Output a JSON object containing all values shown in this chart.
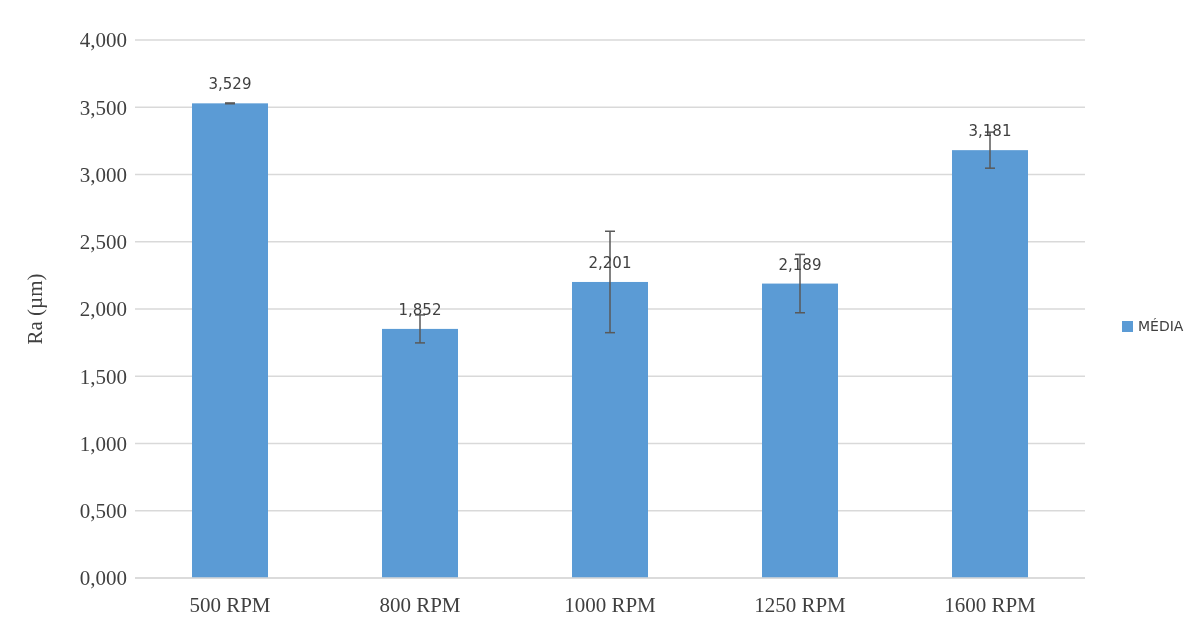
{
  "chart_data": {
    "type": "bar",
    "ylabel": "Ra (µm)",
    "categories": [
      "500 RPM",
      "800 RPM",
      "1000 RPM",
      "1250 RPM",
      "1600 RPM"
    ],
    "series": [
      {
        "name": "MÉDIA",
        "color": "#5b9bd5",
        "values": [
          3.529,
          1.852,
          2.201,
          2.189,
          3.181
        ],
        "errors": [
          0.003,
          0.104,
          0.377,
          0.217,
          0.134
        ],
        "value_labels": [
          "3,529",
          "1,852",
          "2,201",
          "2,189",
          "3,181"
        ]
      }
    ],
    "ylim": [
      0,
      4
    ],
    "yticks": [
      {
        "value": 0,
        "label": "0,000"
      },
      {
        "value": 0.5,
        "label": "0,500"
      },
      {
        "value": 1,
        "label": "1,000"
      },
      {
        "value": 1.5,
        "label": "1,500"
      },
      {
        "value": 2,
        "label": "2,000"
      },
      {
        "value": 2.5,
        "label": "2,500"
      },
      {
        "value": 3,
        "label": "3,000"
      },
      {
        "value": 3.5,
        "label": "3,500"
      },
      {
        "value": 4,
        "label": "4,000"
      }
    ],
    "grid": "y",
    "legend": "right"
  }
}
